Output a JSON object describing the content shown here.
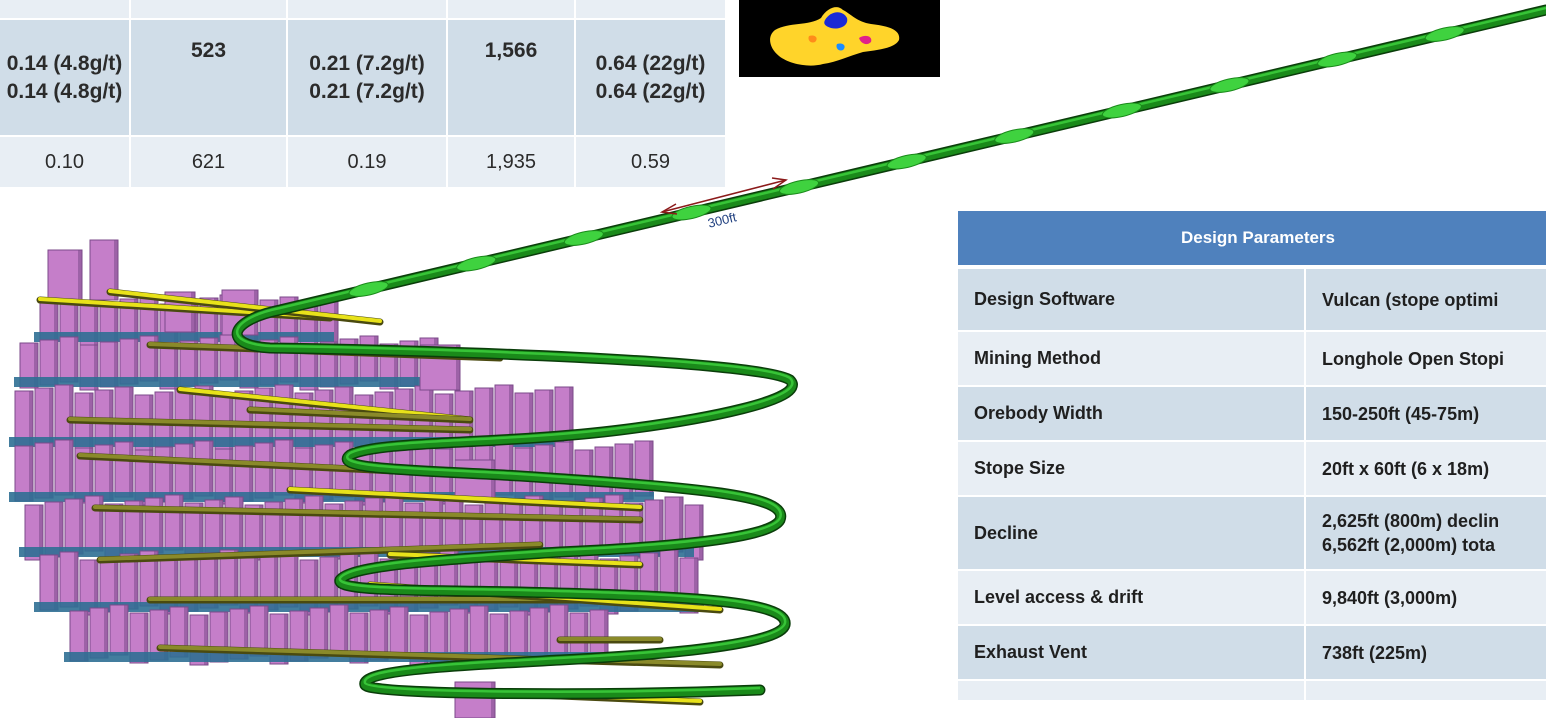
{
  "grade_table": {
    "rows": [
      [
        "",
        "",
        "",
        "",
        ""
      ],
      [
        "0.14\n(4.8g/t)",
        "523",
        "0.21\n(7.2g/t)",
        "1,566",
        "0.64\n(22g/t)"
      ],
      [
        "0.10",
        "621",
        "0.19",
        "1,935",
        "0.59"
      ]
    ]
  },
  "diagram": {
    "scale_label": "300ft",
    "colors": {
      "ramp": "#1a8a1a",
      "ramp_highlight": "#3fd23f",
      "drives": "#e8e21a",
      "drive_dark": "#4a4a10",
      "stopes": "#c57ec9",
      "stope_dark": "#7b4a8a",
      "levels": "#2f6f94",
      "scale_arrow": "#8b1a1a",
      "scale_text": "#1f3f7f"
    }
  },
  "design_parameters": {
    "header": "Design Parameters",
    "rows": [
      {
        "label": "Design Software",
        "value": [
          "Vulcan (stope optimi"
        ]
      },
      {
        "label": "Mining Method",
        "value": [
          "Longhole Open Stopi"
        ]
      },
      {
        "label": "Orebody Width",
        "value": [
          "150-250ft (45-75m)"
        ]
      },
      {
        "label": "Stope Size",
        "value": [
          "20ft x 60ft (6 x 18m)"
        ]
      },
      {
        "label": "Decline",
        "value": [
          "2,625ft (800m) declin",
          "6,562ft (2,000m) tota"
        ]
      },
      {
        "label": "Level access & drift",
        "value": [
          "9,840ft (3,000m)"
        ]
      },
      {
        "label": "Exhaust Vent",
        "value": [
          "738ft (225m)"
        ]
      },
      {
        "label": "",
        "value": [
          ""
        ]
      }
    ]
  }
}
